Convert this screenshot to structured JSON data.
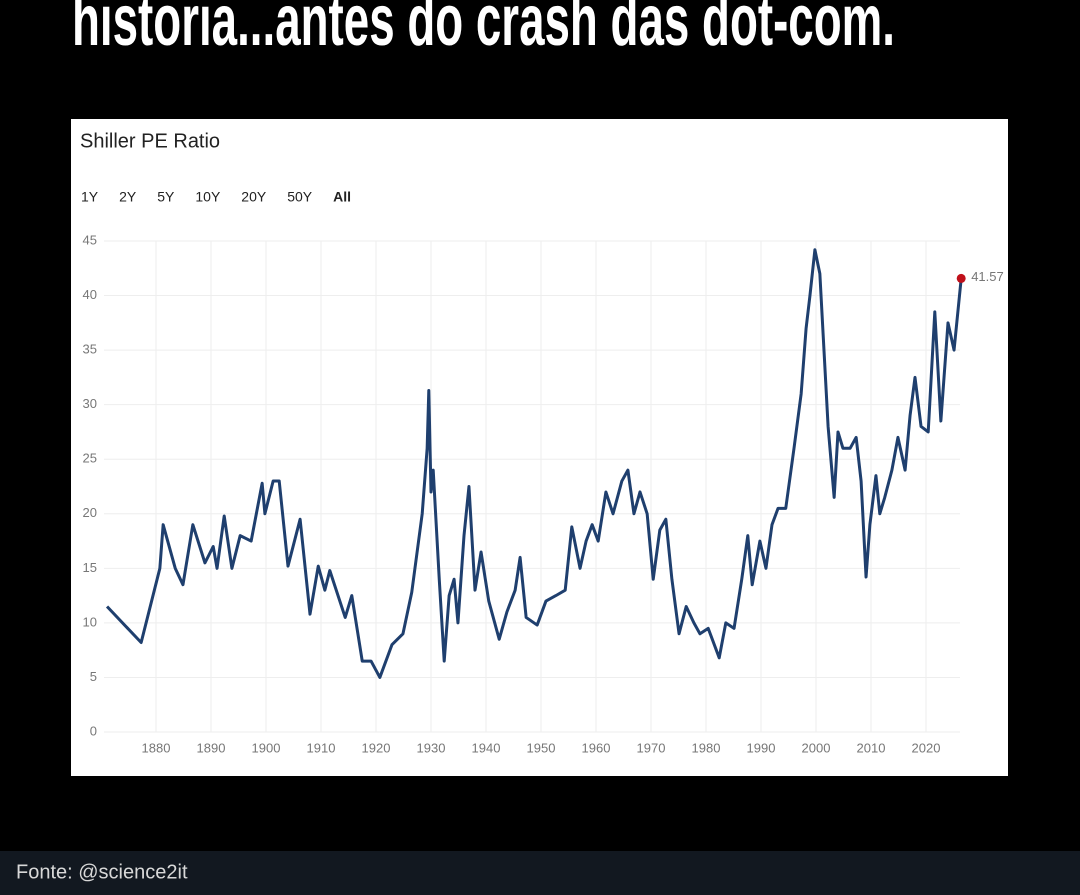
{
  "heading": "historia...antes do crash das dot-com.",
  "range_options": [
    "1Y",
    "2Y",
    "5Y",
    "10Y",
    "20Y",
    "50Y",
    "All"
  ],
  "active_range_index": 6,
  "footer": "Fonte: @science2it",
  "chart_data": {
    "type": "line",
    "title": "Shiller PE Ratio",
    "x": [
      1871.1,
      1877.3,
      1880.7,
      1881.3,
      1883.5,
      1884.9,
      1886.7,
      1888.9,
      1890.4,
      1891.1,
      1892.4,
      1893.8,
      1895.3,
      1897.3,
      1899.3,
      1899.8,
      1901.3,
      1902.4,
      1904.0,
      1906.2,
      1908.0,
      1909.5,
      1910.7,
      1911.6,
      1914.4,
      1915.6,
      1917.5,
      1919.1,
      1920.7,
      1922.9,
      1924.9,
      1926.5,
      1928.4,
      1929.3,
      1929.6,
      1930.0,
      1930.4,
      1931.5,
      1932.4,
      1933.3,
      1934.2,
      1934.9,
      1936.0,
      1936.9,
      1938.0,
      1939.1,
      1940.5,
      1942.4,
      1943.8,
      1945.3,
      1946.2,
      1947.3,
      1949.3,
      1950.9,
      1952.7,
      1954.4,
      1955.6,
      1957.1,
      1958.2,
      1959.3,
      1960.4,
      1961.8,
      1963.1,
      1964.7,
      1965.8,
      1966.9,
      1968.0,
      1969.3,
      1970.4,
      1971.6,
      1972.7,
      1973.8,
      1975.1,
      1976.4,
      1977.8,
      1978.9,
      1980.4,
      1982.4,
      1983.6,
      1985.1,
      1986.5,
      1987.6,
      1988.4,
      1989.8,
      1990.9,
      1992.0,
      1993.1,
      1994.5,
      1996.0,
      1997.3,
      1998.2,
      1998.9,
      1999.8,
      2000.7,
      2002.2,
      2003.3,
      2004.0,
      2004.9,
      2006.2,
      2007.3,
      2008.2,
      2009.1,
      2009.8,
      2010.9,
      2011.6,
      2012.5,
      2013.8,
      2014.9,
      2016.2,
      2017.1,
      2018.0,
      2019.1,
      2020.4,
      2021.6,
      2022.7,
      2024.0,
      2025.1,
      2026.4
    ],
    "series": [
      {
        "name": "Shiller PE Ratio",
        "color": "#1f3f6e",
        "values": [
          11.5,
          8.2,
          15,
          19,
          15,
          13.5,
          19,
          15.5,
          17,
          15,
          19.8,
          15,
          18,
          17.5,
          22.8,
          20,
          23,
          23,
          15.2,
          19.5,
          10.8,
          15.2,
          13,
          14.8,
          10.5,
          12.5,
          6.5,
          6.5,
          5,
          8,
          9,
          12.8,
          20,
          26,
          31.3,
          22,
          24,
          14,
          6.5,
          12.5,
          14,
          10,
          18,
          22.5,
          13,
          16.5,
          12,
          8.5,
          11,
          13,
          16,
          10.5,
          9.8,
          12,
          12.5,
          13,
          18.8,
          15,
          17.5,
          19,
          17.5,
          22,
          20,
          23,
          24,
          20,
          22,
          20,
          14,
          18.5,
          19.5,
          14,
          9,
          11.5,
          10,
          9,
          9.5,
          6.8,
          10,
          9.5,
          14,
          18,
          13.5,
          17.5,
          15,
          19,
          20.5,
          20.5,
          26,
          31,
          37,
          40,
          44.2,
          42,
          28,
          21.5,
          27.5,
          26,
          26,
          27,
          23,
          14.2,
          19,
          23.5,
          20,
          21.5,
          24,
          27,
          24,
          29,
          32.5,
          28,
          27.5,
          38.5,
          28.5,
          37.5,
          35,
          41.57
        ]
      }
    ],
    "last_point_color": "#c0101a",
    "xlim": [
      1870,
      2028
    ],
    "xticks": [
      1880,
      1890,
      1900,
      1910,
      1920,
      1930,
      1940,
      1950,
      1960,
      1970,
      1980,
      1990,
      2000,
      2010,
      2020
    ],
    "ylim": [
      0,
      45
    ],
    "yticks": [
      0,
      5,
      10,
      15,
      20,
      25,
      30,
      35,
      40,
      45
    ],
    "grid": true
  }
}
